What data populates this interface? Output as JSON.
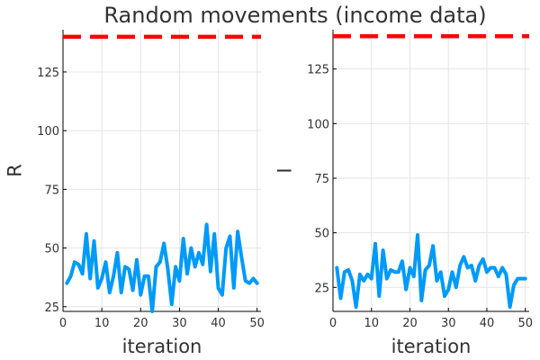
{
  "chart_data": {
    "title": "Random movements (income data)",
    "colors": {
      "series": "#009af9",
      "reference": "#ff0000",
      "grid": "#e5e5e5",
      "axis": "#000000"
    },
    "panels": [
      {
        "type": "line",
        "xlabel": "iteration",
        "ylabel": "R",
        "xlim": [
          0,
          51
        ],
        "ylim": [
          23,
          143
        ],
        "xticks": [
          0,
          10,
          20,
          30,
          40,
          50
        ],
        "yticks": [
          25,
          50,
          75,
          100,
          125
        ],
        "reference_line": {
          "y": 140,
          "style": "dashed"
        },
        "series": [
          {
            "x": [
              1,
              2,
              3,
              4,
              5,
              6,
              7,
              8,
              9,
              10,
              11,
              12,
              13,
              14,
              15,
              16,
              17,
              18,
              19,
              20,
              21,
              22,
              23,
              24,
              25,
              26,
              27,
              28,
              29,
              30,
              31,
              32,
              33,
              34,
              35,
              36,
              37,
              38,
              39,
              40,
              41,
              42,
              43,
              44,
              45,
              46,
              47,
              48,
              49,
              50
            ],
            "values": [
              35,
              38,
              44,
              43,
              39,
              56,
              37,
              53,
              33,
              37,
              44,
              31,
              38,
              48,
              31,
              42,
              41,
              32,
              45,
              30,
              38,
              38,
              23,
              42,
              44,
              52,
              41,
              26,
              42,
              36,
              54,
              39,
              50,
              42,
              48,
              43,
              60,
              40,
              56,
              33,
              30,
              50,
              55,
              33,
              57,
              46,
              36,
              35,
              37,
              35
            ]
          }
        ]
      },
      {
        "type": "line",
        "xlabel": "iteration",
        "ylabel": "I",
        "xlim": [
          0,
          51
        ],
        "ylim": [
          14,
          143
        ],
        "xticks": [
          0,
          10,
          20,
          30,
          40,
          50
        ],
        "yticks": [
          25,
          50,
          75,
          100,
          125
        ],
        "reference_line": {
          "y": 140,
          "style": "dashed"
        },
        "series": [
          {
            "x": [
              1,
              2,
              3,
              4,
              5,
              6,
              7,
              8,
              9,
              10,
              11,
              12,
              13,
              14,
              15,
              16,
              17,
              18,
              19,
              20,
              21,
              22,
              23,
              24,
              25,
              26,
              27,
              28,
              29,
              30,
              31,
              32,
              33,
              34,
              35,
              36,
              37,
              38,
              39,
              40,
              41,
              42,
              43,
              44,
              45,
              46,
              47,
              48,
              49,
              50
            ],
            "values": [
              34,
              20,
              32,
              33,
              28,
              16,
              31,
              28,
              31,
              29,
              45,
              21,
              42,
              29,
              33,
              32,
              32,
              37,
              24,
              34,
              30,
              49,
              19,
              33,
              35,
              44,
              28,
              32,
              21,
              24,
              32,
              25,
              35,
              39,
              34,
              35,
              28,
              35,
              38,
              32,
              34,
              34,
              30,
              34,
              31,
              16,
              26,
              29,
              29,
              29
            ]
          }
        ]
      }
    ]
  }
}
